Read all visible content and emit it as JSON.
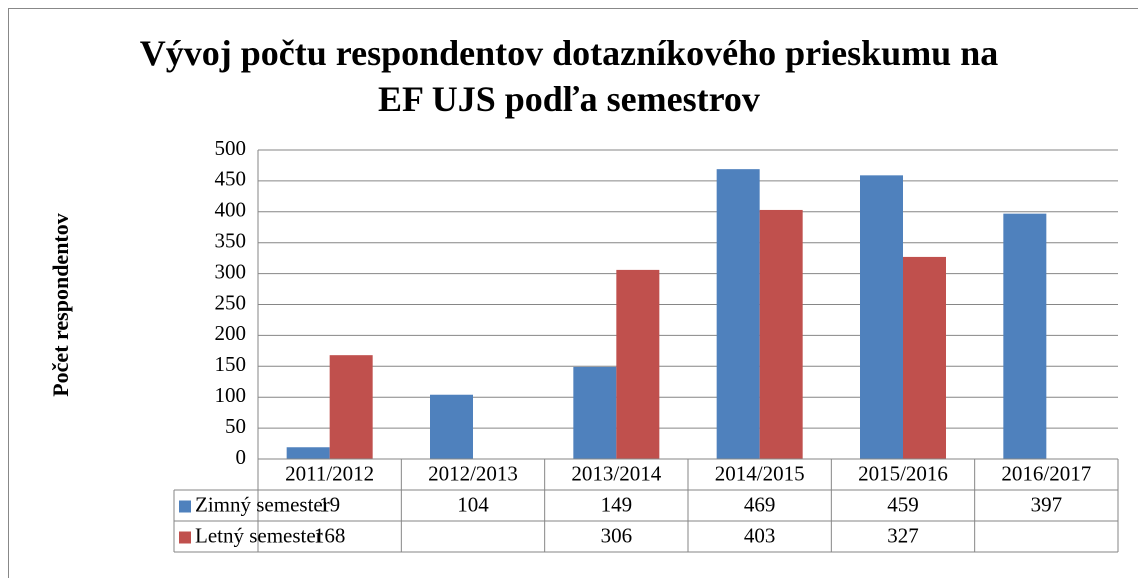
{
  "chart_data": {
    "type": "bar",
    "title": "Vývoj počtu respondentov dotazníkového prieskumu na EF UJS podľa semestrov",
    "y_label": "Počet respondentov",
    "categories": [
      "2011/2012",
      "2012/2013",
      "2013/2014",
      "2014/2015",
      "2015/2016",
      "2016/2017"
    ],
    "series": [
      {
        "name": "Zimný semester",
        "color": "#4f81bd",
        "values": [
          19,
          104,
          149,
          469,
          459,
          397
        ]
      },
      {
        "name": "Letný semester",
        "color": "#c0504d",
        "values": [
          168,
          null,
          306,
          403,
          327,
          null
        ]
      }
    ],
    "ylim": [
      0,
      500
    ],
    "yticks": [
      0,
      50,
      100,
      150,
      200,
      250,
      300,
      350,
      400,
      450,
      500
    ],
    "grid": true,
    "data_table": true
  }
}
